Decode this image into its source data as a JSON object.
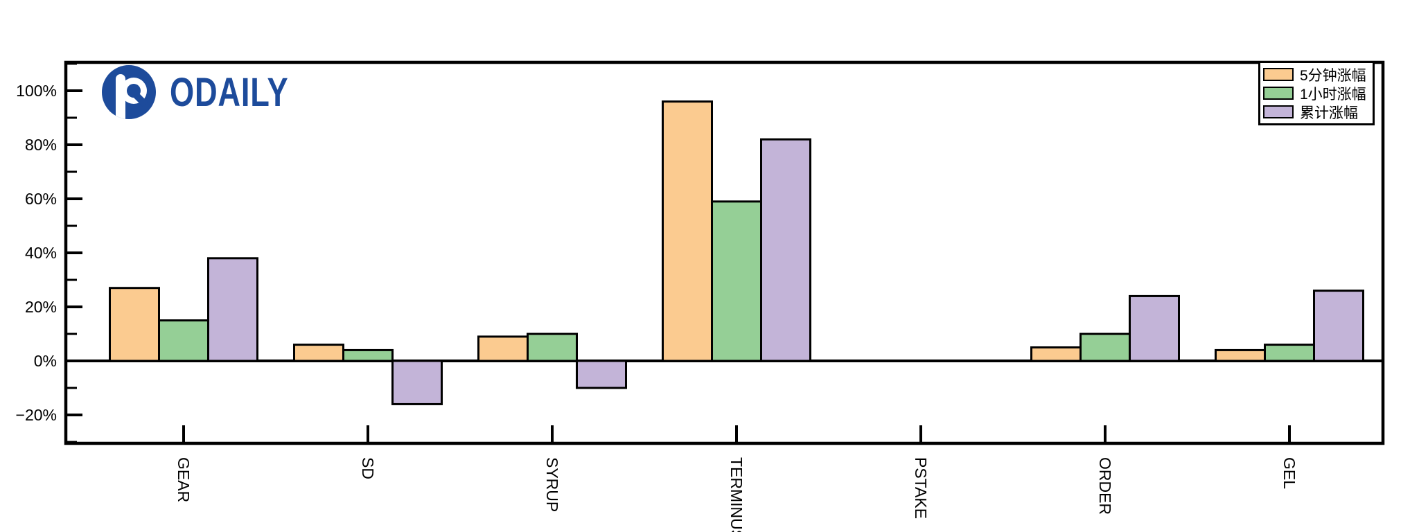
{
  "brand": {
    "logo_text": "ODAILY",
    "logo_color": "#1D4B9B"
  },
  "chart_data": {
    "type": "bar",
    "title": "",
    "xlabel": "",
    "ylabel": "",
    "categories": [
      "GEAR",
      "SD",
      "SYRUP",
      "TERMINUS",
      "PSTAKE",
      "ORDER",
      "GEL"
    ],
    "series": [
      {
        "name": "5分钟涨幅",
        "color": "#FBCB90",
        "values": [
          27,
          6,
          9,
          96,
          0,
          5,
          4
        ]
      },
      {
        "name": "1小时涨幅",
        "color": "#95CF96",
        "values": [
          15,
          4,
          10,
          59,
          0,
          10,
          6
        ]
      },
      {
        "name": "累计涨幅",
        "color": "#C3B4D8",
        "values": [
          38,
          -16,
          -10,
          82,
          0,
          24,
          26
        ]
      }
    ],
    "unit": "%",
    "ytick_values": [
      -20,
      0,
      20,
      40,
      60,
      80,
      100
    ],
    "ytick_labels": [
      "−20%",
      "0%",
      "20%",
      "40%",
      "60%",
      "80%",
      "100%"
    ],
    "ytick_minor_values": [
      -30,
      -10,
      10,
      30,
      50,
      70,
      90,
      110
    ],
    "ylim": [
      -30.5,
      110.5
    ],
    "x_tick_label_rotation": 90,
    "grid": false,
    "legend_position": "top-right",
    "bar_edge_color": "#000000",
    "axis_color": "#000000",
    "tick_direction": "in"
  }
}
